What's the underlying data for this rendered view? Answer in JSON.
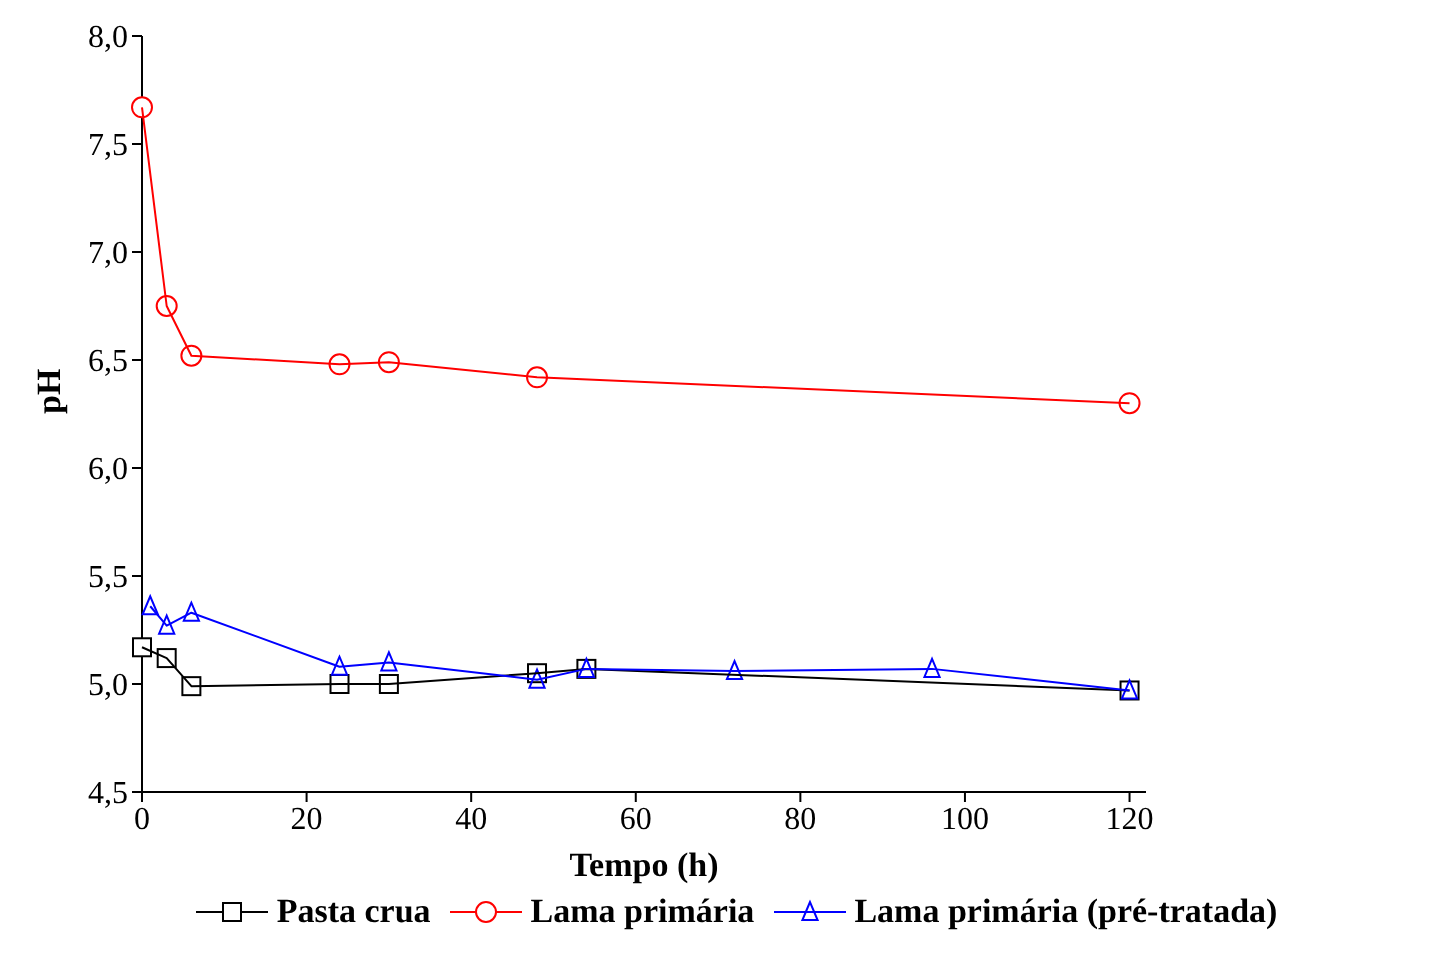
{
  "chart_data": {
    "type": "line",
    "xlabel": "Tempo (h)",
    "ylabel": "pH",
    "xlim": [
      0,
      122
    ],
    "xticks": [
      0,
      20,
      40,
      60,
      80,
      100,
      120
    ],
    "ylim": [
      4.5,
      8.0
    ],
    "yticks": [
      {
        "value": 4.5,
        "label": "4,5"
      },
      {
        "value": 5.0,
        "label": "5,0"
      },
      {
        "value": 5.5,
        "label": "5,5"
      },
      {
        "value": 6.0,
        "label": "6,0"
      },
      {
        "value": 6.5,
        "label": "6,5"
      },
      {
        "value": 7.0,
        "label": "7,0"
      },
      {
        "value": 7.5,
        "label": "7,5"
      },
      {
        "value": 8.0,
        "label": "8,0"
      }
    ],
    "grid": false,
    "legend": "bottom",
    "line_style": "solid",
    "series": [
      {
        "name": "Pasta crua",
        "color": "#000000",
        "marker": "square",
        "x": [
          0,
          3,
          6,
          24,
          30,
          48,
          54,
          120
        ],
        "values": [
          5.17,
          5.12,
          4.99,
          5.0,
          5.0,
          5.05,
          5.07,
          4.97
        ]
      },
      {
        "name": "Lama primária",
        "color": "#ff0000",
        "marker": "circle",
        "x": [
          0,
          3,
          6,
          24,
          30,
          48,
          120
        ],
        "values": [
          7.67,
          6.75,
          6.52,
          6.48,
          6.49,
          6.42,
          6.3
        ]
      },
      {
        "name": "Lama primária (pré-tratada)",
        "color": "#0000ff",
        "marker": "triangle",
        "x": [
          1,
          3,
          6,
          24,
          30,
          48,
          54,
          72,
          96,
          120
        ],
        "values": [
          5.36,
          5.27,
          5.33,
          5.08,
          5.1,
          5.02,
          5.07,
          5.06,
          5.07,
          4.97
        ]
      }
    ]
  }
}
